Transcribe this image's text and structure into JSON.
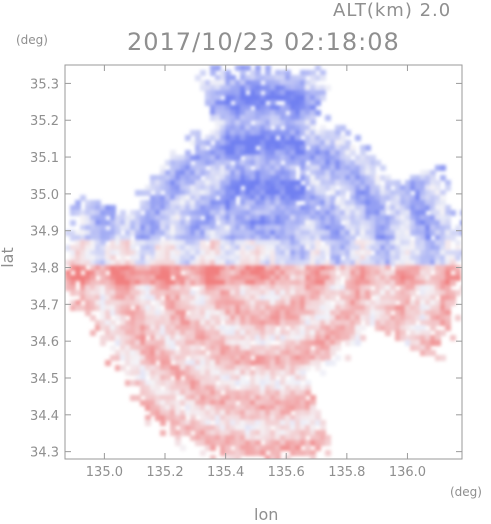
{
  "header": {
    "altitude_label": "ALT(km) 2.0",
    "timestamp": "2017/10/23 02:18:08"
  },
  "chart_data": {
    "type": "heatmap",
    "title": "2017/10/23 02:18:08",
    "xlabel": "lon",
    "ylabel": "lat",
    "x_unit": "(deg)",
    "y_unit": "(deg)",
    "xlim": [
      134.87,
      136.18
    ],
    "ylim": [
      34.28,
      35.35
    ],
    "x_ticks": [
      135.0,
      135.2,
      135.4,
      135.6,
      135.8,
      136.0
    ],
    "x_tick_labels": [
      "135.0",
      "135.2",
      "135.4",
      "135.6",
      "135.8",
      "136.0"
    ],
    "y_ticks": [
      34.3,
      34.4,
      34.5,
      34.6,
      34.7,
      34.8,
      34.9,
      35.0,
      35.1,
      35.2,
      35.3
    ],
    "y_tick_labels": [
      "34.3",
      "34.4",
      "34.5",
      "34.6",
      "34.7",
      "34.8",
      "34.9",
      "35.0",
      "35.1",
      "35.2",
      "35.3"
    ],
    "radar_center": [
      135.52,
      34.82
    ],
    "color_scale": {
      "negative": "#5a6cf0",
      "zero": "#f4f4f8",
      "positive": "#f06a6a"
    },
    "grid": false
  }
}
